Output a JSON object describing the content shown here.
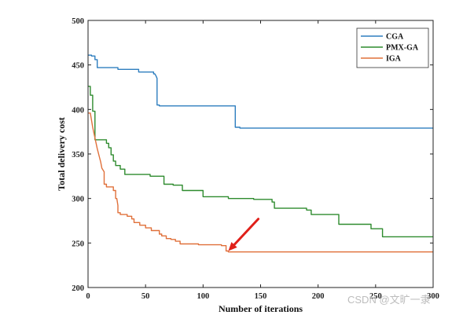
{
  "chart_data": {
    "type": "line",
    "xlabel": "Number of iterations",
    "ylabel": "Total delivery cost",
    "xlim": [
      0,
      300
    ],
    "ylim": [
      200,
      500
    ],
    "xticks": [
      0,
      50,
      100,
      150,
      200,
      250,
      300
    ],
    "yticks": [
      200,
      250,
      300,
      350,
      400,
      450,
      500
    ],
    "xtick_labels": [
      "0",
      "50",
      "100",
      "150",
      "200",
      "250",
      "300"
    ],
    "ytick_labels": [
      "200",
      "250",
      "300",
      "350",
      "400",
      "450",
      "500"
    ],
    "grid": false,
    "legend_position": "top-right",
    "series": [
      {
        "name": "CGA",
        "color": "#2e7ebf",
        "points": [
          [
            0,
            461
          ],
          [
            3,
            461
          ],
          [
            3,
            460
          ],
          [
            6,
            460
          ],
          [
            6,
            456
          ],
          [
            8,
            456
          ],
          [
            8,
            447
          ],
          [
            26,
            447
          ],
          [
            26,
            445
          ],
          [
            44,
            445
          ],
          [
            44,
            442
          ],
          [
            57,
            442
          ],
          [
            57,
            440
          ],
          [
            58,
            440
          ],
          [
            59,
            438
          ],
          [
            60,
            435
          ],
          [
            60,
            405
          ],
          [
            62,
            405
          ],
          [
            62,
            404
          ],
          [
            128,
            404
          ],
          [
            128,
            380
          ],
          [
            132,
            380
          ],
          [
            132,
            379
          ],
          [
            300,
            379
          ]
        ]
      },
      {
        "name": "PMX-GA",
        "color": "#2e8b2e",
        "points": [
          [
            0,
            426
          ],
          [
            2,
            426
          ],
          [
            2,
            416
          ],
          [
            4,
            416
          ],
          [
            4,
            398
          ],
          [
            6,
            398
          ],
          [
            6,
            366
          ],
          [
            16,
            366
          ],
          [
            16,
            362
          ],
          [
            18,
            362
          ],
          [
            18,
            357
          ],
          [
            20,
            357
          ],
          [
            20,
            349
          ],
          [
            22,
            349
          ],
          [
            22,
            342
          ],
          [
            24,
            342
          ],
          [
            24,
            337
          ],
          [
            28,
            337
          ],
          [
            28,
            333
          ],
          [
            32,
            333
          ],
          [
            32,
            327
          ],
          [
            54,
            327
          ],
          [
            54,
            325
          ],
          [
            66,
            325
          ],
          [
            66,
            316
          ],
          [
            74,
            316
          ],
          [
            74,
            315
          ],
          [
            82,
            315
          ],
          [
            82,
            309
          ],
          [
            100,
            309
          ],
          [
            100,
            302
          ],
          [
            122,
            302
          ],
          [
            122,
            300
          ],
          [
            144,
            300
          ],
          [
            144,
            299
          ],
          [
            160,
            299
          ],
          [
            160,
            296
          ],
          [
            162,
            296
          ],
          [
            162,
            289
          ],
          [
            190,
            289
          ],
          [
            190,
            287
          ],
          [
            194,
            287
          ],
          [
            194,
            282
          ],
          [
            218,
            282
          ],
          [
            218,
            271
          ],
          [
            246,
            271
          ],
          [
            246,
            266
          ],
          [
            256,
            266
          ],
          [
            256,
            257
          ],
          [
            300,
            257
          ]
        ]
      },
      {
        "name": "IGA",
        "color": "#e0703a",
        "points": [
          [
            0,
            396
          ],
          [
            2,
            396
          ],
          [
            4,
            380
          ],
          [
            6,
            368
          ],
          [
            8,
            356
          ],
          [
            10,
            346
          ],
          [
            11,
            341
          ],
          [
            12,
            334
          ],
          [
            14,
            330
          ],
          [
            14,
            316
          ],
          [
            16,
            316
          ],
          [
            16,
            313
          ],
          [
            22,
            313
          ],
          [
            22,
            309
          ],
          [
            24,
            309
          ],
          [
            24,
            300
          ],
          [
            25,
            300
          ],
          [
            26,
            292
          ],
          [
            26,
            284
          ],
          [
            28,
            284
          ],
          [
            28,
            282
          ],
          [
            34,
            282
          ],
          [
            34,
            280
          ],
          [
            38,
            280
          ],
          [
            38,
            277
          ],
          [
            40,
            277
          ],
          [
            40,
            273
          ],
          [
            45,
            273
          ],
          [
            45,
            270
          ],
          [
            50,
            270
          ],
          [
            50,
            267
          ],
          [
            55,
            267
          ],
          [
            55,
            264
          ],
          [
            62,
            264
          ],
          [
            62,
            260
          ],
          [
            64,
            260
          ],
          [
            64,
            258
          ],
          [
            68,
            258
          ],
          [
            68,
            255
          ],
          [
            72,
            255
          ],
          [
            72,
            254
          ],
          [
            76,
            254
          ],
          [
            76,
            252
          ],
          [
            80,
            252
          ],
          [
            80,
            249
          ],
          [
            96,
            249
          ],
          [
            96,
            248
          ],
          [
            116,
            248
          ],
          [
            116,
            247
          ],
          [
            120,
            247
          ],
          [
            120,
            241
          ],
          [
            122,
            241
          ],
          [
            122,
            240
          ],
          [
            300,
            240
          ]
        ]
      }
    ],
    "annotations": [
      {
        "type": "arrow",
        "color": "#e0201a",
        "from": [
          148,
          277
        ],
        "to": [
          122,
          241
        ]
      }
    ]
  },
  "watermark": "CSDN @文旷一隶"
}
